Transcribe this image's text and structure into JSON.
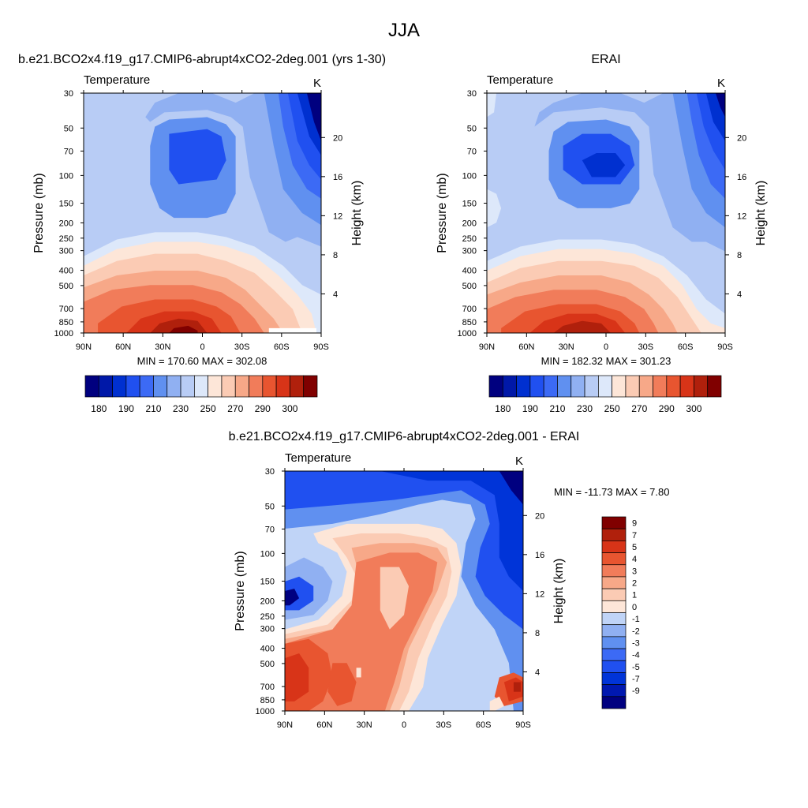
{
  "figure": {
    "title": "JJA"
  },
  "chart_data": [
    {
      "id": "model",
      "type": "heatmap",
      "title": "b.e21.BCO2x4.f19_g17.CMIP6-abrupt4xCO2-2deg.001 (yrs 1-30)",
      "variable": "Temperature",
      "units": "K",
      "ylabel": "Pressure (mb)",
      "y2label": "Height (km)",
      "xlabel": "",
      "xticks": [
        "90N",
        "60N",
        "30N",
        "0",
        "30S",
        "60S",
        "90S"
      ],
      "pressure_ticks": [
        30,
        50,
        70,
        100,
        150,
        200,
        250,
        300,
        400,
        500,
        700,
        850,
        1000
      ],
      "height_ticks": [
        20,
        16,
        12,
        8,
        4
      ],
      "stats": "MIN = 170.60  MAX = 302.08",
      "min": 170.6,
      "max": 302.08,
      "colorbar": {
        "levels": [
          175,
          180,
          185,
          190,
          200,
          210,
          220,
          230,
          240,
          250,
          260,
          270,
          280,
          290,
          295,
          300
        ],
        "labels": [
          "180",
          "190",
          "210",
          "230",
          "250",
          "270",
          "290",
          "300"
        ],
        "orientation": "horizontal"
      }
    },
    {
      "id": "obs",
      "type": "heatmap",
      "title": "ERAI",
      "variable": "Temperature",
      "units": "K",
      "ylabel": "Pressure (mb)",
      "y2label": "Height (km)",
      "xlabel": "",
      "xticks": [
        "90N",
        "60N",
        "30N",
        "0",
        "30S",
        "60S",
        "90S"
      ],
      "pressure_ticks": [
        30,
        50,
        70,
        100,
        150,
        200,
        250,
        300,
        400,
        500,
        700,
        850,
        1000
      ],
      "height_ticks": [
        20,
        16,
        12,
        8,
        4
      ],
      "stats": "MIN = 182.32  MAX = 301.23",
      "min": 182.32,
      "max": 301.23,
      "colorbar": {
        "levels": [
          175,
          180,
          185,
          190,
          200,
          210,
          220,
          230,
          240,
          250,
          260,
          270,
          280,
          290,
          295,
          300
        ],
        "labels": [
          "180",
          "190",
          "210",
          "230",
          "250",
          "270",
          "290",
          "300"
        ],
        "orientation": "horizontal"
      }
    },
    {
      "id": "diff",
      "type": "heatmap",
      "title": "b.e21.BCO2x4.f19_g17.CMIP6-abrupt4xCO2-2deg.001 - ERAI",
      "variable": "Temperature",
      "units": "K",
      "ylabel": "Pressure (mb)",
      "y2label": "Height (km)",
      "xlabel": "",
      "xticks": [
        "90N",
        "60N",
        "30N",
        "0",
        "30S",
        "60S",
        "90S"
      ],
      "pressure_ticks": [
        30,
        50,
        70,
        100,
        150,
        200,
        250,
        300,
        400,
        500,
        700,
        850,
        1000
      ],
      "height_ticks": [
        20,
        16,
        12,
        8,
        4
      ],
      "stats": "MIN = -11.73  MAX =   7.80",
      "min": -11.73,
      "max": 7.8,
      "colorbar": {
        "levels": [
          -9,
          -7,
          -5,
          -4,
          -3,
          -2,
          -1,
          0,
          1,
          2,
          3,
          4,
          5,
          7,
          9
        ],
        "labels": [
          "9",
          "7",
          "5",
          "4",
          "3",
          "2",
          "1",
          "0",
          "-1",
          "-2",
          "-3",
          "-4",
          "-5",
          "-7",
          "-9"
        ],
        "orientation": "vertical"
      }
    }
  ],
  "palettes": {
    "temperature": [
      "#00007f",
      "#0018a8",
      "#0030d0",
      "#2050f0",
      "#3c6af5",
      "#6090f0",
      "#90b0f2",
      "#b8ccf5",
      "#dde8fa",
      "#fde6d8",
      "#fbcbb4",
      "#f7a888",
      "#f17c5a",
      "#e85530",
      "#d83418",
      "#b0200c",
      "#800000"
    ],
    "difference": [
      "#000080",
      "#0018b0",
      "#0034d8",
      "#2050f0",
      "#3c6af5",
      "#6090f0",
      "#90b0f2",
      "#c0d4f7",
      "#fde6d8",
      "#fbcbb4",
      "#f7a888",
      "#f17c5a",
      "#e85530",
      "#d83418",
      "#b0200c",
      "#800000"
    ]
  }
}
